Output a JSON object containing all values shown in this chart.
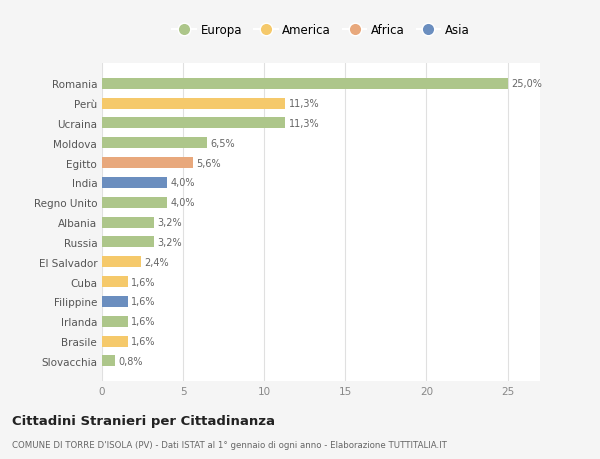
{
  "countries": [
    "Romania",
    "Perù",
    "Ucraina",
    "Moldova",
    "Egitto",
    "India",
    "Regno Unito",
    "Albania",
    "Russia",
    "El Salvador",
    "Cuba",
    "Filippine",
    "Irlanda",
    "Brasile",
    "Slovacchia"
  ],
  "values": [
    25.0,
    11.3,
    11.3,
    6.5,
    5.6,
    4.0,
    4.0,
    3.2,
    3.2,
    2.4,
    1.6,
    1.6,
    1.6,
    1.6,
    0.8
  ],
  "labels": [
    "25,0%",
    "11,3%",
    "11,3%",
    "6,5%",
    "5,6%",
    "4,0%",
    "4,0%",
    "3,2%",
    "3,2%",
    "2,4%",
    "1,6%",
    "1,6%",
    "1,6%",
    "1,6%",
    "0,8%"
  ],
  "colors": [
    "#adc68a",
    "#f5c96b",
    "#adc68a",
    "#adc68a",
    "#e8a87c",
    "#6b8ebf",
    "#adc68a",
    "#adc68a",
    "#adc68a",
    "#f5c96b",
    "#f5c96b",
    "#6b8ebf",
    "#adc68a",
    "#f5c96b",
    "#adc68a"
  ],
  "legend": [
    {
      "label": "Europa",
      "color": "#adc68a"
    },
    {
      "label": "America",
      "color": "#f5c96b"
    },
    {
      "label": "Africa",
      "color": "#e8a87c"
    },
    {
      "label": "Asia",
      "color": "#6b8ebf"
    }
  ],
  "title": "Cittadini Stranieri per Cittadinanza",
  "subtitle": "COMUNE DI TORRE D'ISOLA (PV) - Dati ISTAT al 1° gennaio di ogni anno - Elaborazione TUTTITALIA.IT",
  "background_color": "#f5f5f5",
  "plot_bg_color": "#ffffff",
  "xlim": [
    0,
    27
  ],
  "xticks": [
    0,
    5,
    10,
    15,
    20,
    25
  ]
}
